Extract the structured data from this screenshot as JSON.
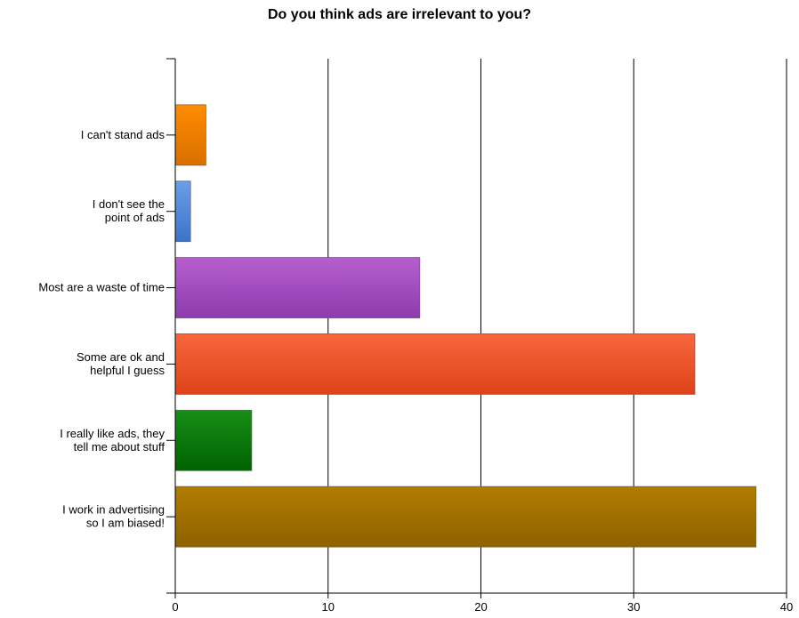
{
  "chart_data": {
    "type": "bar",
    "orientation": "horizontal",
    "title": "Do you think ads are irrelevant to you?",
    "xlabel": "",
    "ylabel": "",
    "categories": [
      [
        "I can't stand ads"
      ],
      [
        "I don't see the",
        "point of ads"
      ],
      [
        "Most are a waste of time"
      ],
      [
        "Some are ok and",
        "helpful I guess"
      ],
      [
        "I really like ads, they",
        "tell me about stuff"
      ],
      [
        "I work in advertising",
        "so I am biased!"
      ]
    ],
    "values": [
      2,
      1,
      16,
      34,
      5,
      38
    ],
    "colors": [
      [
        "#ff8c00",
        "#d96f00"
      ],
      [
        "#6a9ee8",
        "#3d74c8"
      ],
      [
        "#b65ed0",
        "#8e3cad"
      ],
      [
        "#f9663d",
        "#de4318"
      ],
      [
        "#178e17",
        "#006300"
      ],
      [
        "#b07d00",
        "#8f6100"
      ]
    ],
    "xlim": [
      0,
      40
    ],
    "xticks": [
      "0",
      "10",
      "20",
      "30",
      "40"
    ],
    "grid": "vertical",
    "legend": "none"
  }
}
